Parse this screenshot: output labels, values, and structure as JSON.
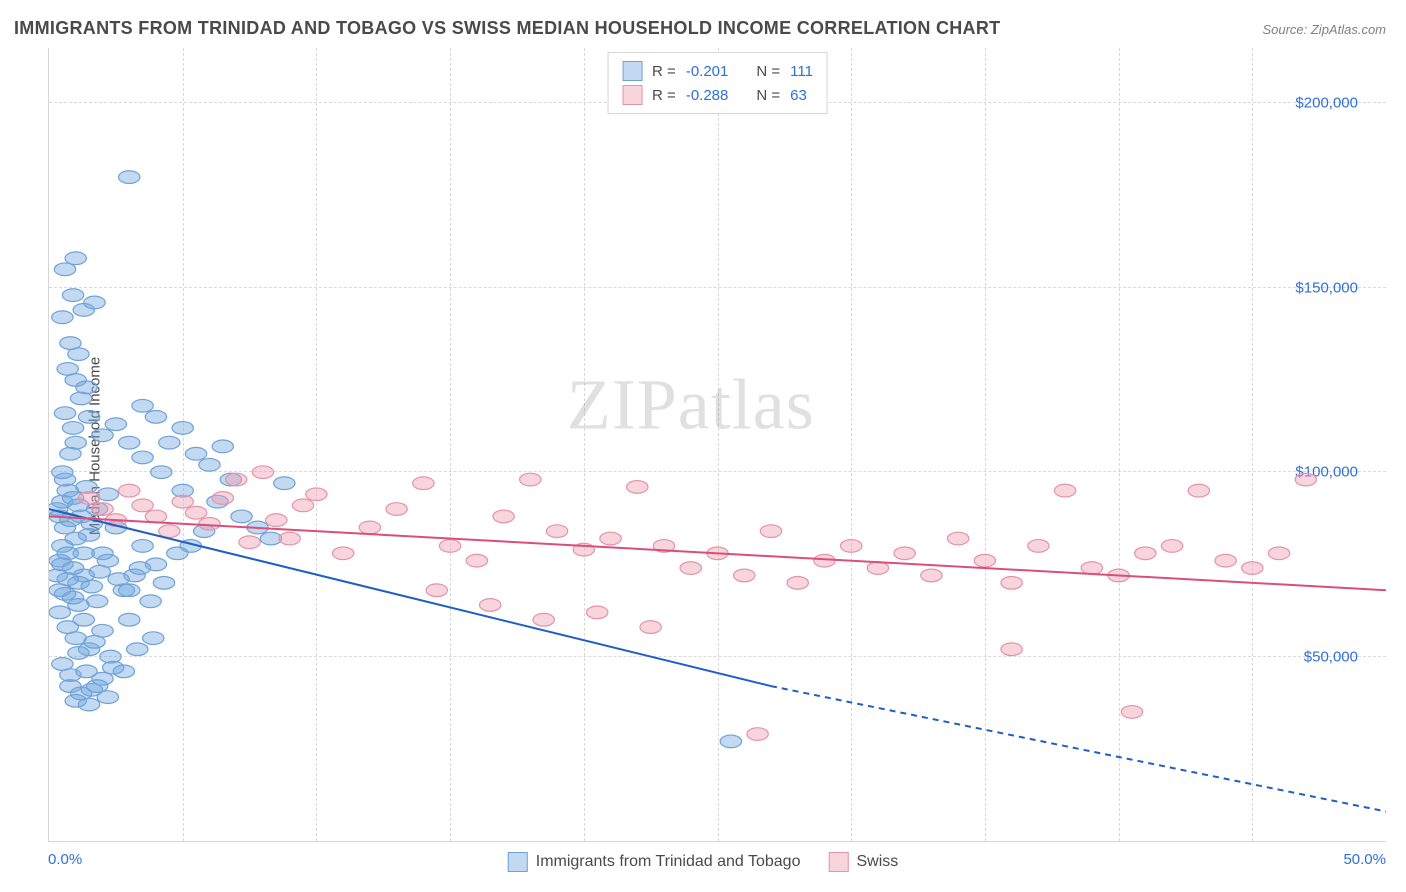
{
  "title": "IMMIGRANTS FROM TRINIDAD AND TOBAGO VS SWISS MEDIAN HOUSEHOLD INCOME CORRELATION CHART",
  "source": "Source: ZipAtlas.com",
  "watermark": "ZIPatlas",
  "y_axis_label": "Median Household Income",
  "chart": {
    "type": "scatter",
    "xlim": [
      0,
      50
    ],
    "ylim": [
      0,
      215000
    ],
    "x_ticks_positions_pct": [
      0,
      10,
      20,
      30,
      40,
      50,
      60,
      70,
      80,
      90
    ],
    "x_tick_labels": {
      "left": "0.0%",
      "right": "50.0%"
    },
    "y_ticks": [
      {
        "value": 50000,
        "label": "$50,000"
      },
      {
        "value": 100000,
        "label": "$100,000"
      },
      {
        "value": 150000,
        "label": "$150,000"
      },
      {
        "value": 200000,
        "label": "$200,000"
      }
    ],
    "grid_color": "#d9d9d9",
    "axis_color": "#d6d6d6",
    "background_color": "#ffffff",
    "marker_radius": 8,
    "marker_stroke_width": 1.2,
    "trend_line_width": 2,
    "series": [
      {
        "name": "Immigrants from Trinidad and Tobago",
        "color_fill": "rgba(120,170,225,0.45)",
        "color_stroke": "#6fa3d8",
        "trend_color": "#1f5fc4",
        "R": "-0.201",
        "N": "111",
        "trend_line": {
          "x1": 0,
          "y1": 90000,
          "x2": 27,
          "y2": 42000,
          "dash_after_x": 27,
          "x3": 50,
          "y3": 8000
        },
        "points": [
          [
            0.3,
            90000
          ],
          [
            0.4,
            88000
          ],
          [
            0.5,
            92000
          ],
          [
            0.6,
            85000
          ],
          [
            0.7,
            95000
          ],
          [
            0.5,
            80000
          ],
          [
            0.6,
            98000
          ],
          [
            0.8,
            87000
          ],
          [
            0.9,
            93000
          ],
          [
            1.0,
            82000
          ],
          [
            1.1,
            91000
          ],
          [
            0.4,
            76000
          ],
          [
            0.5,
            100000
          ],
          [
            0.7,
            78000
          ],
          [
            0.8,
            105000
          ],
          [
            1.2,
            88000
          ],
          [
            1.3,
            72000
          ],
          [
            1.4,
            96000
          ],
          [
            1.5,
            83000
          ],
          [
            0.6,
            67000
          ],
          [
            0.9,
            74000
          ],
          [
            1.0,
            108000
          ],
          [
            1.1,
            70000
          ],
          [
            1.6,
            86000
          ],
          [
            1.8,
            90000
          ],
          [
            2.0,
            78000
          ],
          [
            2.2,
            94000
          ],
          [
            2.5,
            85000
          ],
          [
            0.4,
            62000
          ],
          [
            0.7,
            58000
          ],
          [
            1.0,
            55000
          ],
          [
            1.3,
            60000
          ],
          [
            1.5,
            52000
          ],
          [
            1.8,
            65000
          ],
          [
            2.0,
            57000
          ],
          [
            0.5,
            48000
          ],
          [
            0.8,
            45000
          ],
          [
            1.1,
            51000
          ],
          [
            1.4,
            46000
          ],
          [
            1.7,
            54000
          ],
          [
            2.3,
            50000
          ],
          [
            2.8,
            68000
          ],
          [
            3.0,
            60000
          ],
          [
            3.2,
            72000
          ],
          [
            3.5,
            80000
          ],
          [
            4.0,
            75000
          ],
          [
            0.8,
            42000
          ],
          [
            1.2,
            40000
          ],
          [
            1.6,
            41000
          ],
          [
            2.0,
            44000
          ],
          [
            2.4,
            47000
          ],
          [
            1.0,
            38000
          ],
          [
            1.5,
            37000
          ],
          [
            0.6,
            116000
          ],
          [
            0.9,
            112000
          ],
          [
            1.2,
            120000
          ],
          [
            1.5,
            115000
          ],
          [
            0.7,
            128000
          ],
          [
            1.0,
            125000
          ],
          [
            1.4,
            123000
          ],
          [
            0.8,
            135000
          ],
          [
            1.1,
            132000
          ],
          [
            0.5,
            142000
          ],
          [
            0.9,
            148000
          ],
          [
            1.3,
            144000
          ],
          [
            1.7,
            146000
          ],
          [
            2.0,
            110000
          ],
          [
            2.5,
            113000
          ],
          [
            3.0,
            108000
          ],
          [
            3.5,
            104000
          ],
          [
            4.2,
            100000
          ],
          [
            5.0,
            95000
          ],
          [
            0.6,
            155000
          ],
          [
            1.0,
            158000
          ],
          [
            3.0,
            180000
          ],
          [
            0.3,
            72000
          ],
          [
            0.4,
            68000
          ],
          [
            0.5,
            75000
          ],
          [
            0.7,
            71000
          ],
          [
            0.9,
            66000
          ],
          [
            1.1,
            64000
          ],
          [
            1.3,
            78000
          ],
          [
            1.6,
            69000
          ],
          [
            1.9,
            73000
          ],
          [
            2.2,
            76000
          ],
          [
            2.6,
            71000
          ],
          [
            3.0,
            68000
          ],
          [
            3.4,
            74000
          ],
          [
            3.8,
            65000
          ],
          [
            4.3,
            70000
          ],
          [
            4.8,
            78000
          ],
          [
            5.3,
            80000
          ],
          [
            5.8,
            84000
          ],
          [
            6.3,
            92000
          ],
          [
            6.8,
            98000
          ],
          [
            7.2,
            88000
          ],
          [
            7.8,
            85000
          ],
          [
            8.3,
            82000
          ],
          [
            8.8,
            97000
          ],
          [
            3.5,
            118000
          ],
          [
            4.0,
            115000
          ],
          [
            4.5,
            108000
          ],
          [
            5.0,
            112000
          ],
          [
            5.5,
            105000
          ],
          [
            6.0,
            102000
          ],
          [
            6.5,
            107000
          ],
          [
            25.5,
            27000
          ],
          [
            1.8,
            42000
          ],
          [
            2.2,
            39000
          ],
          [
            2.8,
            46000
          ],
          [
            3.3,
            52000
          ],
          [
            3.9,
            55000
          ]
        ]
      },
      {
        "name": "Swiss",
        "color_fill": "rgba(240,160,180,0.45)",
        "color_stroke": "#e394ab",
        "trend_color": "#d94f7a",
        "R": "-0.288",
        "N": "63",
        "trend_line": {
          "x1": 0,
          "y1": 88000,
          "x2": 50,
          "y2": 68000,
          "dash_after_x": 50
        },
        "points": [
          [
            2.0,
            90000
          ],
          [
            3.0,
            95000
          ],
          [
            4.0,
            88000
          ],
          [
            5.0,
            92000
          ],
          [
            6.0,
            86000
          ],
          [
            7.0,
            98000
          ],
          [
            8.0,
            100000
          ],
          [
            9.0,
            82000
          ],
          [
            10.0,
            94000
          ],
          [
            11.0,
            78000
          ],
          [
            12.0,
            85000
          ],
          [
            13.0,
            90000
          ],
          [
            14.0,
            97000
          ],
          [
            15.0,
            80000
          ],
          [
            16.0,
            76000
          ],
          [
            17.0,
            88000
          ],
          [
            18.0,
            98000
          ],
          [
            19.0,
            84000
          ],
          [
            20.0,
            79000
          ],
          [
            21.0,
            82000
          ],
          [
            22.0,
            96000
          ],
          [
            23.0,
            80000
          ],
          [
            24.0,
            74000
          ],
          [
            25.0,
            78000
          ],
          [
            26.0,
            72000
          ],
          [
            27.0,
            84000
          ],
          [
            28.0,
            70000
          ],
          [
            29.0,
            76000
          ],
          [
            30.0,
            80000
          ],
          [
            31.0,
            74000
          ],
          [
            32.0,
            78000
          ],
          [
            33.0,
            72000
          ],
          [
            34.0,
            82000
          ],
          [
            35.0,
            76000
          ],
          [
            36.0,
            70000
          ],
          [
            37.0,
            80000
          ],
          [
            38.0,
            95000
          ],
          [
            39.0,
            74000
          ],
          [
            40.0,
            72000
          ],
          [
            41.0,
            78000
          ],
          [
            42.0,
            80000
          ],
          [
            43.0,
            95000
          ],
          [
            44.0,
            76000
          ],
          [
            45.0,
            74000
          ],
          [
            46.0,
            78000
          ],
          [
            47.0,
            98000
          ],
          [
            14.5,
            68000
          ],
          [
            16.5,
            64000
          ],
          [
            18.5,
            60000
          ],
          [
            20.5,
            62000
          ],
          [
            22.5,
            58000
          ],
          [
            26.5,
            29000
          ],
          [
            36.0,
            52000
          ],
          [
            40.5,
            35000
          ],
          [
            1.5,
            93000
          ],
          [
            2.5,
            87000
          ],
          [
            3.5,
            91000
          ],
          [
            4.5,
            84000
          ],
          [
            5.5,
            89000
          ],
          [
            6.5,
            93000
          ],
          [
            7.5,
            81000
          ],
          [
            8.5,
            87000
          ],
          [
            9.5,
            91000
          ]
        ]
      }
    ],
    "legend_top": {
      "R_label": "R =",
      "N_label": "N ="
    },
    "legend_bottom_labels": [
      "Immigrants from Trinidad and Tobago",
      "Swiss"
    ]
  }
}
